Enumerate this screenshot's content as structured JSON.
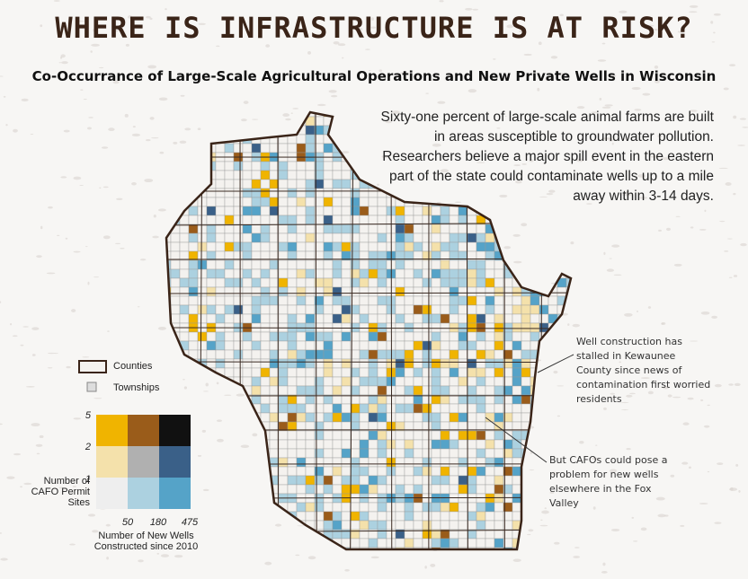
{
  "header": {
    "title": "WHERE IS INFRASTRUCTURE IS AT RISK?",
    "subtitle": "Co-Occurrance of Large-Scale Agricultural Operations and New Private Wells in Wisconsin"
  },
  "intro": "Sixty-one percent of large-scale animal farms are built in areas susceptible to groundwater pollution. Researchers believe a major spill event in the eastern part of the state could contaminate wells up to a mile away within 3-14 days.",
  "annotations": [
    "Well construction has stalled in Kewaunee County since news of contamination first worried residents",
    "But CAFOs could pose a problem for new wells elsewhere in the Fox Valley"
  ],
  "legend": {
    "counties": "Counties",
    "townships": "Townships",
    "y_label": "Number of CAFO Permit Sites",
    "x_label": "Number of New Wells Constructed since 2010",
    "y_ticks": [
      "5",
      "2",
      "1"
    ],
    "x_ticks": [
      "50",
      "180",
      "475"
    ],
    "colors": [
      [
        "#f0b400",
        "#9a5c1a",
        "#111111"
      ],
      [
        "#f4e1ab",
        "#b0b0b0",
        "#3a6088"
      ],
      [
        "#eeeeee",
        "#acd1e0",
        "#55a3c8"
      ]
    ]
  }
}
